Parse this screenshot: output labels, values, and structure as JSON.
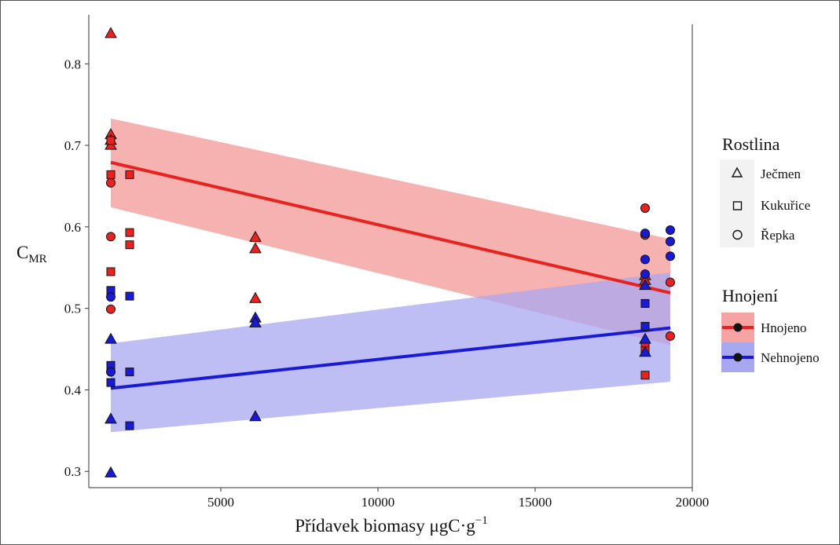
{
  "chart_data": {
    "type": "scatter",
    "title": "",
    "xlabel": "Přídavek biomasy μgC·g",
    "xlabel_sup": "−1",
    "ylabel_main": "C",
    "ylabel_sub": "MR",
    "xlim": [
      800,
      20000
    ],
    "ylim": [
      0.28,
      0.86
    ],
    "x_ticks": [
      5000,
      10000,
      15000,
      20000
    ],
    "y_ticks": [
      0.3,
      0.4,
      0.5,
      0.6,
      0.7,
      0.8
    ],
    "x_tick_labels": [
      "5000",
      "10000",
      "15000",
      "20000"
    ],
    "y_tick_labels": [
      "0.3",
      "0.4",
      "0.5",
      "0.6",
      "0.7",
      "0.8"
    ],
    "grid": false,
    "legend_position": "right",
    "colors": {
      "Hnojeno": "#e8221f",
      "Nehnojeno": "#1a1ad6",
      "Hnojeno_band": "#f5a3a3",
      "Nehnojeno_band": "#a8a8f0"
    },
    "legend": {
      "shape_title": "Rostlina",
      "shapes": [
        {
          "label": "Ječmen",
          "shape": "triangle"
        },
        {
          "label": "Kukuřice",
          "shape": "square"
        },
        {
          "label": "Řepka",
          "shape": "circle"
        }
      ],
      "fill_title": "Hnojení",
      "fills": [
        {
          "label": "Hnojeno",
          "group": "Hnojeno"
        },
        {
          "label": "Nehnojeno",
          "group": "Nehnojeno"
        }
      ]
    },
    "fits": [
      {
        "group": "Hnojeno",
        "x": [
          1500,
          19300
        ],
        "y": [
          0.679,
          0.519
        ],
        "ci_x": [
          1500,
          19300
        ],
        "ci_upper": [
          0.733,
          0.585
        ],
        "ci_lower": [
          0.624,
          0.455
        ]
      },
      {
        "group": "Nehnojeno",
        "x": [
          1500,
          19300
        ],
        "y": [
          0.402,
          0.476
        ],
        "ci_x": [
          1500,
          19300
        ],
        "ci_upper": [
          0.457,
          0.544
        ],
        "ci_lower": [
          0.348,
          0.41
        ]
      }
    ],
    "points": [
      {
        "x": 1500,
        "y": 0.837,
        "shape": "triangle",
        "group": "Hnojeno"
      },
      {
        "x": 1500,
        "y": 0.713,
        "shape": "triangle",
        "group": "Hnojeno"
      },
      {
        "x": 1500,
        "y": 0.706,
        "shape": "triangle",
        "group": "Hnojeno"
      },
      {
        "x": 1500,
        "y": 0.7,
        "shape": "triangle",
        "group": "Hnojeno"
      },
      {
        "x": 1500,
        "y": 0.706,
        "shape": "square",
        "group": "Hnojeno"
      },
      {
        "x": 1500,
        "y": 0.664,
        "shape": "square",
        "group": "Hnojeno"
      },
      {
        "x": 1500,
        "y": 0.654,
        "shape": "circle",
        "group": "Hnojeno"
      },
      {
        "x": 1500,
        "y": 0.588,
        "shape": "circle",
        "group": "Hnojeno"
      },
      {
        "x": 1500,
        "y": 0.545,
        "shape": "square",
        "group": "Hnojeno"
      },
      {
        "x": 1500,
        "y": 0.499,
        "shape": "circle",
        "group": "Hnojeno"
      },
      {
        "x": 1500,
        "y": 0.522,
        "shape": "square",
        "group": "Nehnojeno"
      },
      {
        "x": 1500,
        "y": 0.514,
        "shape": "circle",
        "group": "Nehnojeno"
      },
      {
        "x": 1500,
        "y": 0.462,
        "shape": "triangle",
        "group": "Nehnojeno"
      },
      {
        "x": 1500,
        "y": 0.43,
        "shape": "square",
        "group": "Nehnojeno"
      },
      {
        "x": 1500,
        "y": 0.422,
        "shape": "circle",
        "group": "Nehnojeno"
      },
      {
        "x": 1500,
        "y": 0.409,
        "shape": "square",
        "group": "Nehnojeno"
      },
      {
        "x": 1500,
        "y": 0.364,
        "shape": "triangle",
        "group": "Nehnojeno"
      },
      {
        "x": 1500,
        "y": 0.298,
        "shape": "triangle",
        "group": "Nehnojeno"
      },
      {
        "x": 2100,
        "y": 0.664,
        "shape": "square",
        "group": "Hnojeno"
      },
      {
        "x": 2100,
        "y": 0.593,
        "shape": "square",
        "group": "Hnojeno"
      },
      {
        "x": 2100,
        "y": 0.578,
        "shape": "square",
        "group": "Hnojeno"
      },
      {
        "x": 2100,
        "y": 0.515,
        "shape": "square",
        "group": "Nehnojeno"
      },
      {
        "x": 2100,
        "y": 0.422,
        "shape": "square",
        "group": "Nehnojeno"
      },
      {
        "x": 2100,
        "y": 0.356,
        "shape": "square",
        "group": "Nehnojeno"
      },
      {
        "x": 6100,
        "y": 0.587,
        "shape": "triangle",
        "group": "Hnojeno"
      },
      {
        "x": 6100,
        "y": 0.573,
        "shape": "triangle",
        "group": "Hnojeno"
      },
      {
        "x": 6100,
        "y": 0.512,
        "shape": "triangle",
        "group": "Hnojeno"
      },
      {
        "x": 6100,
        "y": 0.488,
        "shape": "triangle",
        "group": "Nehnojeno"
      },
      {
        "x": 6100,
        "y": 0.482,
        "shape": "triangle",
        "group": "Nehnojeno"
      },
      {
        "x": 6100,
        "y": 0.367,
        "shape": "triangle",
        "group": "Nehnojeno"
      },
      {
        "x": 18500,
        "y": 0.623,
        "shape": "circle",
        "group": "Hnojeno"
      },
      {
        "x": 18500,
        "y": 0.59,
        "shape": "circle",
        "group": "Hnojeno"
      },
      {
        "x": 18500,
        "y": 0.54,
        "shape": "triangle",
        "group": "Hnojeno"
      },
      {
        "x": 18500,
        "y": 0.534,
        "shape": "triangle",
        "group": "Hnojeno"
      },
      {
        "x": 18500,
        "y": 0.455,
        "shape": "square",
        "group": "Hnojeno"
      },
      {
        "x": 18500,
        "y": 0.448,
        "shape": "square",
        "group": "Hnojeno"
      },
      {
        "x": 18500,
        "y": 0.418,
        "shape": "square",
        "group": "Hnojeno"
      },
      {
        "x": 18500,
        "y": 0.592,
        "shape": "circle",
        "group": "Nehnojeno"
      },
      {
        "x": 18500,
        "y": 0.56,
        "shape": "circle",
        "group": "Nehnojeno"
      },
      {
        "x": 18500,
        "y": 0.542,
        "shape": "circle",
        "group": "Nehnojeno"
      },
      {
        "x": 18500,
        "y": 0.528,
        "shape": "triangle",
        "group": "Nehnojeno"
      },
      {
        "x": 18500,
        "y": 0.506,
        "shape": "square",
        "group": "Nehnojeno"
      },
      {
        "x": 18500,
        "y": 0.478,
        "shape": "square",
        "group": "Nehnojeno"
      },
      {
        "x": 18500,
        "y": 0.462,
        "shape": "triangle",
        "group": "Nehnojeno"
      },
      {
        "x": 18500,
        "y": 0.446,
        "shape": "triangle",
        "group": "Nehnojeno"
      },
      {
        "x": 19300,
        "y": 0.532,
        "shape": "circle",
        "group": "Hnojeno"
      },
      {
        "x": 19300,
        "y": 0.466,
        "shape": "circle",
        "group": "Hnojeno"
      },
      {
        "x": 19300,
        "y": 0.596,
        "shape": "circle",
        "group": "Nehnojeno"
      },
      {
        "x": 19300,
        "y": 0.582,
        "shape": "circle",
        "group": "Nehnojeno"
      },
      {
        "x": 19300,
        "y": 0.564,
        "shape": "circle",
        "group": "Nehnojeno"
      }
    ]
  }
}
